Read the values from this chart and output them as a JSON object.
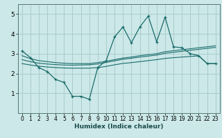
{
  "xlabel": "Humidex (Indice chaleur)",
  "bg_color": "#cce8e8",
  "grid_color": "#aacccc",
  "line_color": "#1a6b6b",
  "xlim": [
    -0.5,
    23.5
  ],
  "ylim": [
    0,
    5.5
  ],
  "yticks": [
    1,
    2,
    3,
    4,
    5
  ],
  "xticks": [
    0,
    1,
    2,
    3,
    4,
    5,
    6,
    7,
    8,
    9,
    10,
    11,
    12,
    13,
    14,
    15,
    16,
    17,
    18,
    19,
    20,
    21,
    22,
    23
  ],
  "x": [
    0,
    1,
    2,
    3,
    4,
    5,
    6,
    7,
    8,
    9,
    10,
    11,
    12,
    13,
    14,
    15,
    16,
    17,
    18,
    19,
    20,
    21,
    22,
    23
  ],
  "line1": [
    3.15,
    2.8,
    2.3,
    2.1,
    1.7,
    1.55,
    0.85,
    0.85,
    0.7,
    2.3,
    2.65,
    3.85,
    4.35,
    3.55,
    4.35,
    4.9,
    3.6,
    4.85,
    3.35,
    3.3,
    3.0,
    2.9,
    2.5,
    2.5
  ],
  "line2": [
    2.9,
    2.75,
    2.65,
    2.6,
    2.55,
    2.52,
    2.5,
    2.5,
    2.5,
    2.55,
    2.62,
    2.7,
    2.78,
    2.83,
    2.9,
    2.95,
    3.0,
    3.1,
    3.15,
    3.2,
    3.25,
    3.3,
    3.35,
    3.4
  ],
  "line3": [
    2.7,
    2.6,
    2.52,
    2.48,
    2.45,
    2.43,
    2.42,
    2.43,
    2.44,
    2.48,
    2.56,
    2.64,
    2.72,
    2.77,
    2.83,
    2.88,
    2.93,
    3.02,
    3.07,
    3.12,
    3.17,
    3.22,
    3.27,
    3.32
  ],
  "line4": [
    2.5,
    2.43,
    2.37,
    2.33,
    2.3,
    2.28,
    2.27,
    2.27,
    2.27,
    2.3,
    2.36,
    2.44,
    2.51,
    2.55,
    2.6,
    2.65,
    2.7,
    2.76,
    2.8,
    2.83,
    2.86,
    2.89,
    2.5,
    2.5
  ]
}
